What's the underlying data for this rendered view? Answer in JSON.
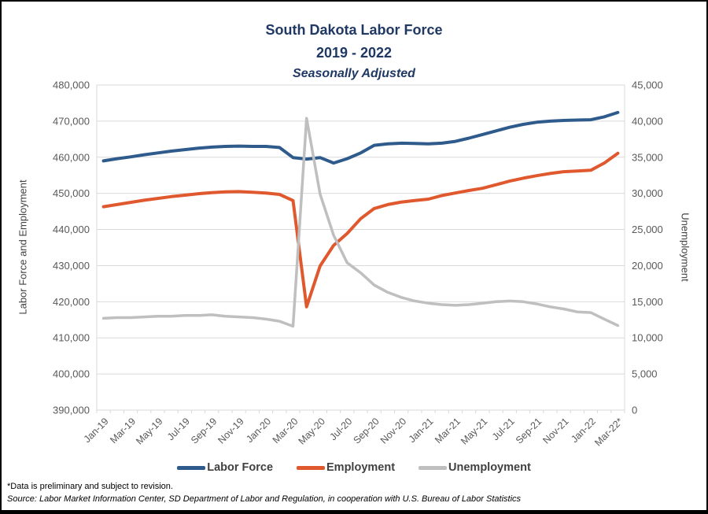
{
  "title": {
    "line1": "South Dakota Labor Force",
    "line2": "2019 - 2022",
    "line3": "Seasonally Adjusted",
    "color": "#1F3864"
  },
  "left_axis": {
    "label": "Labor Force and Employment",
    "min": 390000,
    "max": 480000,
    "step": 10000
  },
  "right_axis": {
    "label": "Unemployment",
    "min": 0,
    "max": 45000,
    "step": 5000
  },
  "legend": [
    {
      "label": "Labor Force",
      "color": "#2E5B8C"
    },
    {
      "label": "Employment",
      "color": "#E0582E"
    },
    {
      "label": "Unemployment",
      "color": "#BFBFBF"
    }
  ],
  "footnote": "*Data is preliminary and subject to revision.",
  "source": "Source: Labor Market Information Center, SD Department of Labor and Regulation, in cooperation with U.S. Bureau of Labor Statistics",
  "colors": {
    "gridline": "#D9D9D9",
    "tick_text": "#595959",
    "border": "#000000"
  },
  "chart_data": {
    "type": "line",
    "title": "South Dakota Labor Force 2019 - 2022, Seasonally Adjusted",
    "grid": true,
    "legend_position": "bottom",
    "left_ylim": [
      390000,
      480000
    ],
    "right_ylim": [
      0,
      45000
    ],
    "categories": [
      "Jan-19",
      "Feb-19",
      "Mar-19",
      "Apr-19",
      "May-19",
      "Jun-19",
      "Jul-19",
      "Aug-19",
      "Sep-19",
      "Oct-19",
      "Nov-19",
      "Dec-19",
      "Jan-20",
      "Feb-20",
      "Mar-20",
      "Apr-20",
      "May-20",
      "Jun-20",
      "Jul-20",
      "Aug-20",
      "Sep-20",
      "Oct-20",
      "Nov-20",
      "Dec-20",
      "Jan-21",
      "Feb-21",
      "Mar-21",
      "Apr-21",
      "May-21",
      "Jun-21",
      "Jul-21",
      "Aug-21",
      "Sep-21",
      "Oct-21",
      "Nov-21",
      "Dec-21",
      "Jan-22",
      "Feb-22",
      "Mar-22"
    ],
    "x_tick_labels": [
      "Jan-19",
      "Mar-19",
      "May-19",
      "Jul-19",
      "Sep-19",
      "Nov-19",
      "Jan-20",
      "Mar-20",
      "May-20",
      "Jul-20",
      "Sep-20",
      "Nov-20",
      "Jan-21",
      "Mar-21",
      "May-21",
      "Jul-21",
      "Sep-21",
      "Nov-21",
      "Jan-22",
      "Mar-22*"
    ],
    "series": [
      {
        "name": "Labor Force",
        "axis": "left",
        "color": "#2E5B8C",
        "width": 4,
        "values": [
          459000,
          459600,
          460100,
          460700,
          461200,
          461700,
          462100,
          462500,
          462800,
          463000,
          463100,
          463000,
          463000,
          462700,
          459900,
          459500,
          459900,
          458400,
          459600,
          461200,
          463300,
          463700,
          463900,
          463800,
          463700,
          463900,
          464400,
          465300,
          466300,
          467300,
          468300,
          469100,
          469700,
          470000,
          470200,
          470300,
          470400,
          471200,
          472400
        ]
      },
      {
        "name": "Employment",
        "axis": "left",
        "color": "#E0582E",
        "width": 4,
        "values": [
          446300,
          446900,
          447500,
          448100,
          448600,
          449100,
          449500,
          449900,
          450200,
          450400,
          450500,
          450300,
          450100,
          449700,
          448000,
          418600,
          429900,
          435600,
          438900,
          443000,
          445800,
          446900,
          447600,
          448000,
          448400,
          449400,
          450100,
          450800,
          451400,
          452400,
          453400,
          454200,
          454900,
          455500,
          456000,
          456200,
          456400,
          458400,
          461100
        ]
      },
      {
        "name": "Unemployment",
        "axis": "right",
        "color": "#BFBFBF",
        "width": 3.5,
        "values": [
          12700,
          12800,
          12800,
          12900,
          13000,
          13000,
          13100,
          13100,
          13200,
          13000,
          12900,
          12800,
          12600,
          12300,
          11600,
          40400,
          29900,
          24200,
          20400,
          19000,
          17300,
          16300,
          15600,
          15100,
          14800,
          14600,
          14500,
          14600,
          14800,
          15000,
          15100,
          15000,
          14700,
          14300,
          14000,
          13600,
          13500,
          12600,
          11700
        ]
      }
    ]
  }
}
